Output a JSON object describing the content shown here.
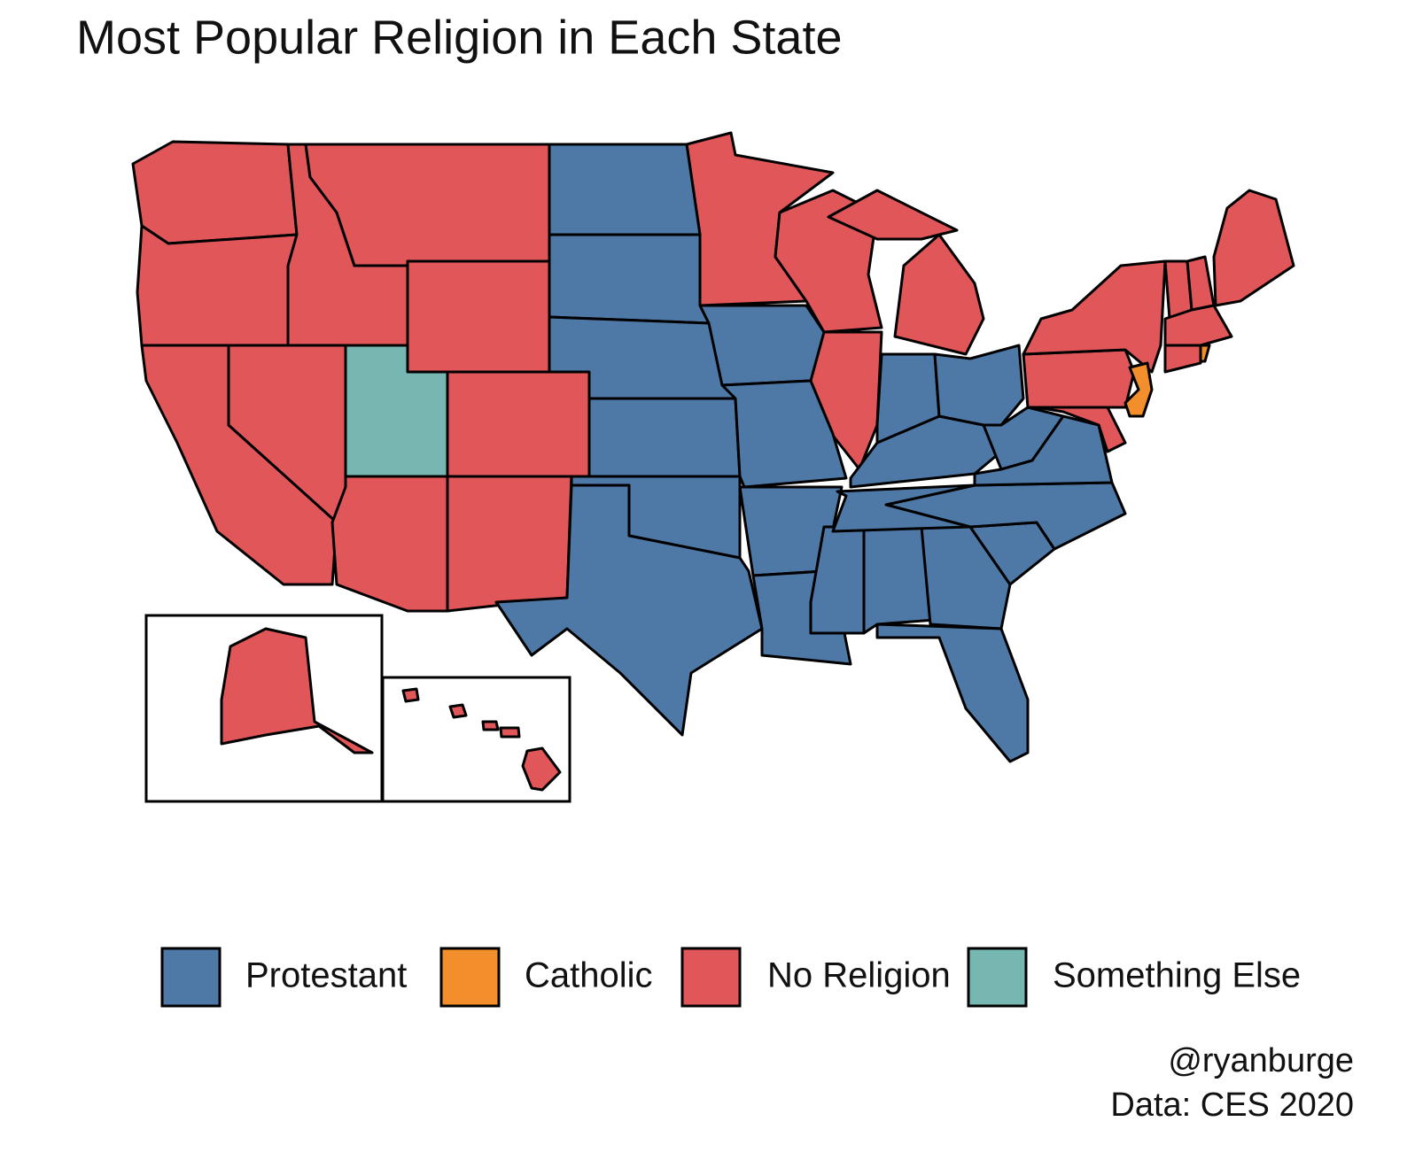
{
  "title": "Most Popular Religion in Each State",
  "legend": [
    {
      "name": "Protestant",
      "color": "#4e79a7"
    },
    {
      "name": "Catholic",
      "color": "#f28e2b"
    },
    {
      "name": "No Religion",
      "color": "#e15759"
    },
    {
      "name": "Something Else",
      "color": "#76b7b2"
    }
  ],
  "caption": [
    "@ryanburge",
    "Data: CES 2020"
  ]
}
